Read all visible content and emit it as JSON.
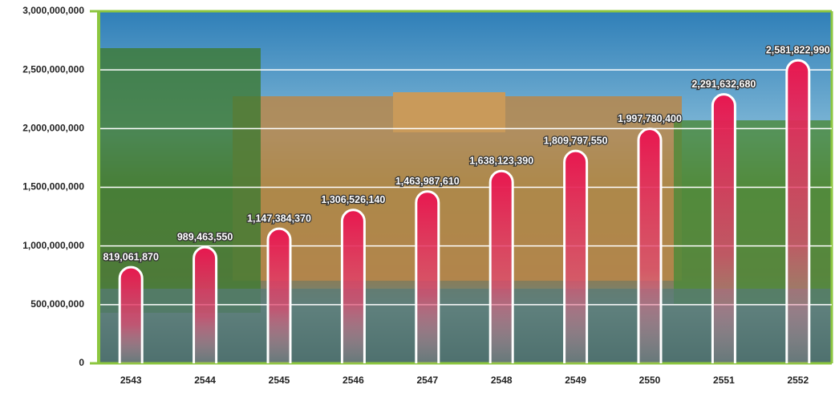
{
  "chart_data": {
    "type": "bar",
    "categories": [
      "2543",
      "2544",
      "2545",
      "2546",
      "2547",
      "2548",
      "2549",
      "2550",
      "2551",
      "2552"
    ],
    "values": [
      819061870,
      989463550,
      1147384370,
      1306526140,
      1463987610,
      1638123390,
      1809797550,
      1997780400,
      2291632680,
      2581822990
    ],
    "value_labels": [
      "819,061,870",
      "989,463,550",
      "1,147,384,370",
      "1,306,526,140",
      "1,463,987,610",
      "1,638,123,390",
      "1,809,797,550",
      "1,997,780,400",
      "2,291,632,680",
      "2,581,822,990"
    ],
    "color": "#e8174f",
    "ylim": [
      0,
      3000000000
    ],
    "yticks": [
      0,
      {
        "value": 500000000,
        "label": "500,000,000"
      },
      {
        "value": 1000000000,
        "label": "1,000,000,000"
      },
      {
        "value": 1500000000,
        "label": "1,500,000,000"
      },
      {
        "value": 2000000000,
        "label": "2,000,000,000"
      },
      {
        "value": 2500000000,
        "label": "2,500,000,000"
      },
      {
        "value": 3000000000,
        "label": "3,000,000,000"
      }
    ],
    "grid": true
  }
}
